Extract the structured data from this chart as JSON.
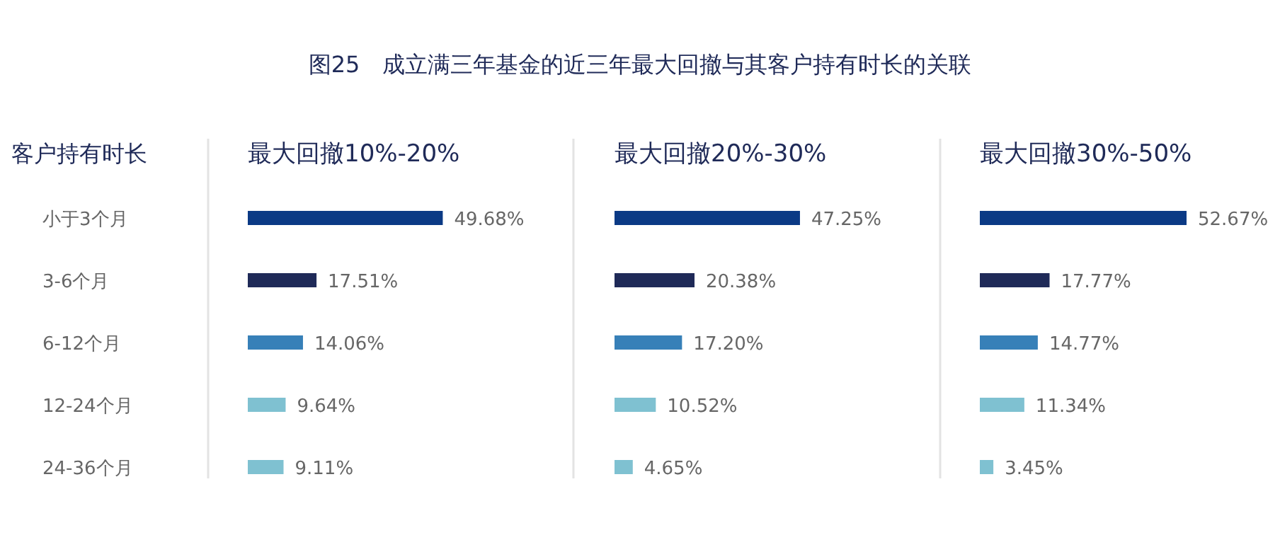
{
  "chart_data": [
    {
      "type": "bar",
      "orientation": "horizontal",
      "title": "图25　成立满三年基金的近三年最大回撤与其客户持有时长的关联",
      "ylabel": "客户持有时长",
      "subtitle": "最大回撤10%-20%",
      "categories": [
        "小于3个月",
        "3-6个月",
        "6-12个月",
        "12-24个月",
        "24-36个月"
      ],
      "values": [
        49.68,
        17.51,
        14.06,
        9.64,
        9.11
      ],
      "value_labels": [
        "49.68%",
        "17.51%",
        "14.06%",
        "9.64%",
        "9.11%"
      ],
      "colors": [
        "#0b3a85",
        "#1f2a58",
        "#3780b8",
        "#7fc1d1",
        "#7fc1d1"
      ],
      "tick_labels": "y"
    },
    {
      "type": "bar",
      "orientation": "horizontal",
      "subtitle": "最大回撤20%-30%",
      "categories": [
        null,
        null,
        null,
        null,
        null
      ],
      "values": [
        47.25,
        20.38,
        17.2,
        10.52,
        4.65
      ],
      "value_labels": [
        "47.25%",
        "20.38%",
        "17.20%",
        "10.52%",
        "4.65%"
      ],
      "colors": [
        "#0b3a85",
        "#1f2a58",
        "#3780b8",
        "#7fc1d1",
        "#7fc1d1"
      ],
      "tick_labels": false
    },
    {
      "type": "bar",
      "orientation": "horizontal",
      "subtitle": "最大回撤30%-50%",
      "categories": [
        null,
        null,
        null,
        null,
        null
      ],
      "values": [
        52.67,
        17.77,
        14.77,
        11.34,
        3.45
      ],
      "value_labels": [
        "52.67%",
        "17.77%",
        "14.77%",
        "11.34%",
        "3.45%"
      ],
      "colors": [
        "#0b3a85",
        "#1f2a58",
        "#3780b8",
        "#7fc1d1",
        "#7fc1d1"
      ],
      "tick_labels": false
    }
  ]
}
